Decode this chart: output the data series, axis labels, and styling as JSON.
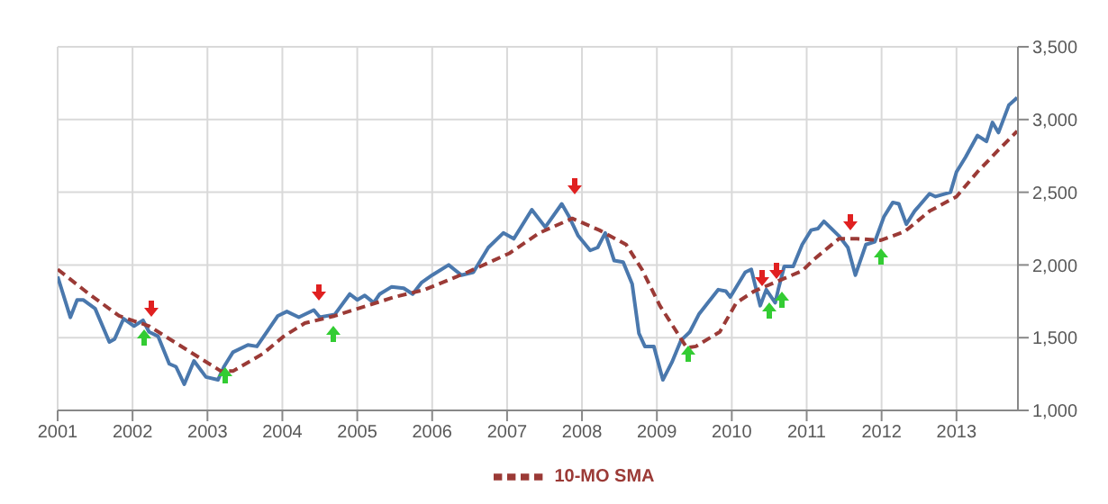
{
  "chart_data": {
    "type": "line",
    "xlim": [
      2001,
      2013.82
    ],
    "xticks": [
      2001,
      2002,
      2003,
      2004,
      2005,
      2006,
      2007,
      2008,
      2009,
      2010,
      2011,
      2012,
      2013
    ],
    "ylim": [
      1000,
      3500
    ],
    "yticks": [
      {
        "value": 1000,
        "label": "1,000"
      },
      {
        "value": 1500,
        "label": "1,500"
      },
      {
        "value": 2000,
        "label": "2,000"
      },
      {
        "value": 2500,
        "label": "2,500"
      },
      {
        "value": 3000,
        "label": "3,000"
      },
      {
        "value": 3500,
        "label": "3,500"
      }
    ],
    "grid": true,
    "legend": "bottom",
    "series": [
      {
        "color": "#4a78ad",
        "line_style": "solid",
        "x": [
          2001.0,
          2001.17,
          2001.26,
          2001.34,
          2001.5,
          2001.69,
          2001.76,
          2001.88,
          2002.02,
          2002.14,
          2002.22,
          2002.34,
          2002.49,
          2002.58,
          2002.69,
          2002.82,
          2002.98,
          2003.14,
          2003.22,
          2003.34,
          2003.54,
          2003.66,
          2003.78,
          2003.94,
          2004.06,
          2004.22,
          2004.42,
          2004.5,
          2004.7,
          2004.9,
          2005.0,
          2005.1,
          2005.22,
          2005.3,
          2005.46,
          2005.62,
          2005.74,
          2005.86,
          2006.0,
          2006.22,
          2006.39,
          2006.55,
          2006.75,
          2006.95,
          2007.09,
          2007.33,
          2007.51,
          2007.73,
          2007.83,
          2007.95,
          2008.11,
          2008.21,
          2008.31,
          2008.43,
          2008.55,
          2008.67,
          2008.76,
          2008.84,
          2008.96,
          2009.08,
          2009.2,
          2009.32,
          2009.44,
          2009.56,
          2009.68,
          2009.82,
          2009.92,
          2009.98,
          2010.18,
          2010.26,
          2010.38,
          2010.46,
          2010.58,
          2010.62,
          2010.7,
          2010.82,
          2010.94,
          2011.06,
          2011.15,
          2011.23,
          2011.43,
          2011.55,
          2011.65,
          2011.79,
          2011.91,
          2012.03,
          2012.15,
          2012.23,
          2012.33,
          2012.44,
          2012.64,
          2012.72,
          2012.92,
          2013.0,
          2013.12,
          2013.28,
          2013.4,
          2013.48,
          2013.56,
          2013.7,
          2013.81
        ],
        "values": [
          1920,
          1640,
          1760,
          1760,
          1700,
          1470,
          1490,
          1630,
          1580,
          1620,
          1540,
          1510,
          1320,
          1300,
          1180,
          1340,
          1230,
          1210,
          1300,
          1400,
          1450,
          1440,
          1530,
          1650,
          1680,
          1640,
          1690,
          1640,
          1660,
          1800,
          1760,
          1790,
          1740,
          1800,
          1850,
          1840,
          1800,
          1880,
          1930,
          2000,
          1930,
          1950,
          2120,
          2220,
          2180,
          2380,
          2260,
          2420,
          2330,
          2200,
          2100,
          2120,
          2220,
          2030,
          2020,
          1870,
          1530,
          1440,
          1440,
          1210,
          1330,
          1480,
          1540,
          1660,
          1740,
          1830,
          1820,
          1780,
          1950,
          1970,
          1720,
          1830,
          1740,
          1830,
          1990,
          1990,
          2140,
          2240,
          2250,
          2300,
          2200,
          2120,
          1930,
          2140,
          2160,
          2330,
          2430,
          2420,
          2280,
          2370,
          2490,
          2470,
          2500,
          2640,
          2740,
          2890,
          2850,
          2980,
          2910,
          3100,
          3150
        ]
      },
      {
        "name": "10-MO SMA",
        "color": "#9b3a36",
        "line_style": "dashed",
        "x": [
          2001.0,
          2001.42,
          2001.82,
          2002.22,
          2002.62,
          2003.18,
          2003.34,
          2003.74,
          2004.02,
          2004.3,
          2004.7,
          2005.5,
          2005.9,
          2006.47,
          2007.03,
          2007.43,
          2007.87,
          2008.23,
          2008.59,
          2008.8,
          2009.04,
          2009.4,
          2009.52,
          2009.84,
          2010.06,
          2010.3,
          2010.62,
          2010.94,
          2011.1,
          2011.43,
          2011.67,
          2011.99,
          2012.31,
          2012.64,
          2013.0,
          2013.28,
          2013.56,
          2013.81
        ],
        "values": [
          1970,
          1800,
          1650,
          1580,
          1450,
          1270,
          1270,
          1390,
          1510,
          1600,
          1650,
          1780,
          1830,
          1950,
          2080,
          2220,
          2320,
          2240,
          2140,
          1970,
          1720,
          1430,
          1440,
          1540,
          1740,
          1820,
          1890,
          1960,
          2040,
          2180,
          2180,
          2170,
          2230,
          2370,
          2470,
          2640,
          2790,
          2920
        ]
      }
    ]
  }
}
